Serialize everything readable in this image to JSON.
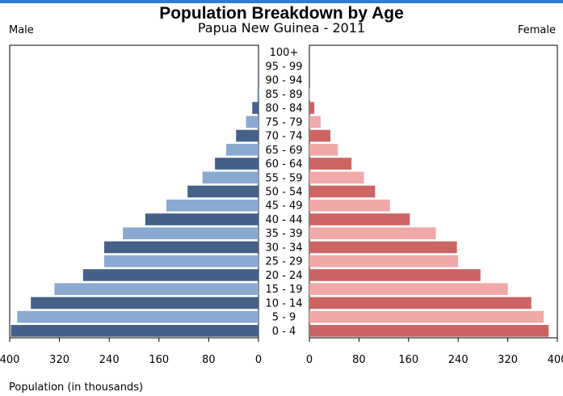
{
  "header": {
    "title": "Population Breakdown by Age",
    "subtitle": "Papua New Guinea - 2011",
    "left_label": "Male",
    "right_label": "Female"
  },
  "chart_data": {
    "type": "bar",
    "orientation": "horizontal-pyramid",
    "title": "Population Breakdown by Age",
    "subtitle": "Papua New Guinea - 2011",
    "xlabel": "Population (in thousands)",
    "categories": [
      "100+",
      "95 - 99",
      "90 - 94",
      "85 - 89",
      "80 - 84",
      "75 - 79",
      "70 - 74",
      "65 - 69",
      "60 - 64",
      "55 - 59",
      "50 - 54",
      "45 - 49",
      "40 - 44",
      "35 - 39",
      "30 - 34",
      "25 - 29",
      "20 - 24",
      "15 - 19",
      "10 - 14",
      "5 - 9",
      "0 - 4"
    ],
    "series": [
      {
        "name": "Male",
        "values": [
          0,
          0,
          1,
          2,
          10,
          20,
          36,
          52,
          70,
          90,
          114,
          148,
          182,
          218,
          248,
          248,
          282,
          328,
          366,
          388,
          398
        ],
        "colors": [
          "#44618a",
          "#8aa9d0"
        ]
      },
      {
        "name": "Female",
        "values": [
          0,
          0,
          0,
          1,
          8,
          18,
          34,
          46,
          68,
          88,
          106,
          130,
          162,
          204,
          238,
          240,
          276,
          320,
          358,
          378,
          386
        ],
        "colors": [
          "#cd6464",
          "#f0a8a8"
        ]
      }
    ],
    "xlim": [
      0,
      400
    ],
    "xticks": [
      "400",
      "320",
      "240",
      "160",
      "80",
      "0"
    ],
    "xticks_right": [
      "0",
      "80",
      "160",
      "240",
      "320",
      "400"
    ],
    "grid": false,
    "legend": "none"
  }
}
